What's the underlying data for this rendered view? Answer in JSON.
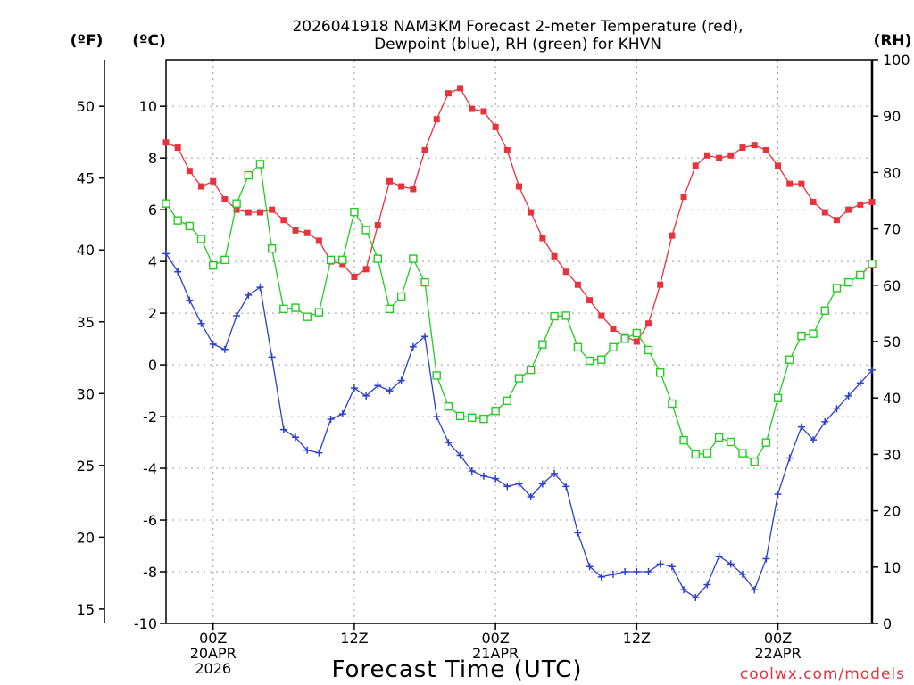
{
  "chart_data": {
    "type": "line",
    "title_line1": "2026041918 NAM3KM Forecast 2-meter Temperature (red),",
    "title_line2": "Dewpoint (blue), RH (green) for KHVN",
    "xlabel": "Forecast Time (UTC)",
    "credit": "coolwx.com/models",
    "left_unit_f": "(ºF)",
    "left_unit_c": "(ºC)",
    "right_unit": "(RH)",
    "x_start_hour": -6,
    "x_range_hours": [
      -6,
      84
    ],
    "ylim_c": [
      -10,
      11.8
    ],
    "ylim_f": [
      14,
      53.24
    ],
    "ylim_rh": [
      0,
      100
    ],
    "x_ticks": [
      {
        "hour": 0,
        "line1": "00Z",
        "line2": "20APR",
        "line3": "2026"
      },
      {
        "hour": 18,
        "line1": "12Z",
        "line2": "",
        "line3": ""
      },
      {
        "hour": 36,
        "line1": "00Z",
        "line2": "21APR",
        "line3": ""
      },
      {
        "hour": 54,
        "line1": "12Z",
        "line2": "",
        "line3": ""
      },
      {
        "hour": 72,
        "line1": "00Z",
        "line2": "22APR",
        "line3": ""
      }
    ],
    "yticks_c": [
      "10",
      "8",
      "6",
      "4",
      "2",
      "0",
      "-2",
      "-4",
      "-6",
      "-8",
      "-10"
    ],
    "yticks_f": [
      "50",
      "45",
      "40",
      "35",
      "30",
      "25",
      "20",
      "15"
    ],
    "yticks_rh": [
      "100",
      "90",
      "80",
      "70",
      "60",
      "50",
      "40",
      "30",
      "20",
      "10",
      "0"
    ],
    "series": [
      {
        "name": "2-meter Temperature",
        "unit": "°C",
        "color": "#e8323c",
        "marker": "filled-square",
        "values": [
          8.6,
          8.4,
          7.5,
          6.9,
          7.1,
          6.4,
          6.0,
          5.9,
          5.9,
          6.0,
          5.6,
          5.2,
          5.1,
          4.8,
          4.0,
          3.9,
          3.4,
          3.7,
          5.4,
          7.1,
          6.9,
          6.8,
          8.3,
          9.5,
          10.5,
          10.7,
          9.9,
          9.8,
          9.2,
          8.3,
          6.9,
          5.9,
          4.9,
          4.2,
          3.6,
          3.1,
          2.5,
          1.9,
          1.4,
          1.1,
          0.9,
          1.6,
          3.1,
          5.0,
          6.5,
          7.7,
          8.1,
          8.0,
          8.1,
          8.4,
          8.5,
          8.3,
          7.7,
          7.0,
          7.0,
          6.3,
          5.9,
          5.6,
          6.0,
          6.2,
          6.3
        ]
      },
      {
        "name": "Dewpoint",
        "unit": "°C",
        "color": "#2d3fd0",
        "marker": "plus",
        "values": [
          4.3,
          3.6,
          2.5,
          1.6,
          0.8,
          0.6,
          1.9,
          2.7,
          3.0,
          0.3,
          -2.5,
          -2.8,
          -3.3,
          -3.4,
          -2.1,
          -1.9,
          -0.9,
          -1.2,
          -0.8,
          -1.0,
          -0.6,
          0.7,
          1.1,
          -2.0,
          -3.0,
          -3.5,
          -4.1,
          -4.3,
          -4.4,
          -4.7,
          -4.6,
          -5.1,
          -4.6,
          -4.2,
          -4.7,
          -6.5,
          -7.8,
          -8.2,
          -8.1,
          -8.0,
          -8.0,
          -8.0,
          -7.7,
          -7.8,
          -8.7,
          -9.0,
          -8.5,
          -7.4,
          -7.7,
          -8.1,
          -8.7,
          -7.5,
          -5.0,
          -3.6,
          -2.4,
          -2.9,
          -2.2,
          -1.7,
          -1.2,
          -0.7,
          -0.2
        ]
      },
      {
        "name": "RH",
        "unit": "%",
        "color": "#22cc22",
        "marker": "open-square",
        "values": [
          74.5,
          71.5,
          70.5,
          68.2,
          63.5,
          64.5,
          74.5,
          79.5,
          81.5,
          66.5,
          55.8,
          56.0,
          54.4,
          55.2,
          64.5,
          64.5,
          73.0,
          69.8,
          64.7,
          55.8,
          58.0,
          64.7,
          60.5,
          44.0,
          38.5,
          36.8,
          36.5,
          36.3,
          37.7,
          39.5,
          43.5,
          45.0,
          49.5,
          54.5,
          54.6,
          49.0,
          46.6,
          46.8,
          49.0,
          50.5,
          51.5,
          48.5,
          44.5,
          39.0,
          32.5,
          30.0,
          30.2,
          33.0,
          32.2,
          30.2,
          28.7,
          32.1,
          40.0,
          46.8,
          51.0,
          51.4,
          55.5,
          59.5,
          60.5,
          61.8,
          63.8
        ]
      }
    ]
  }
}
